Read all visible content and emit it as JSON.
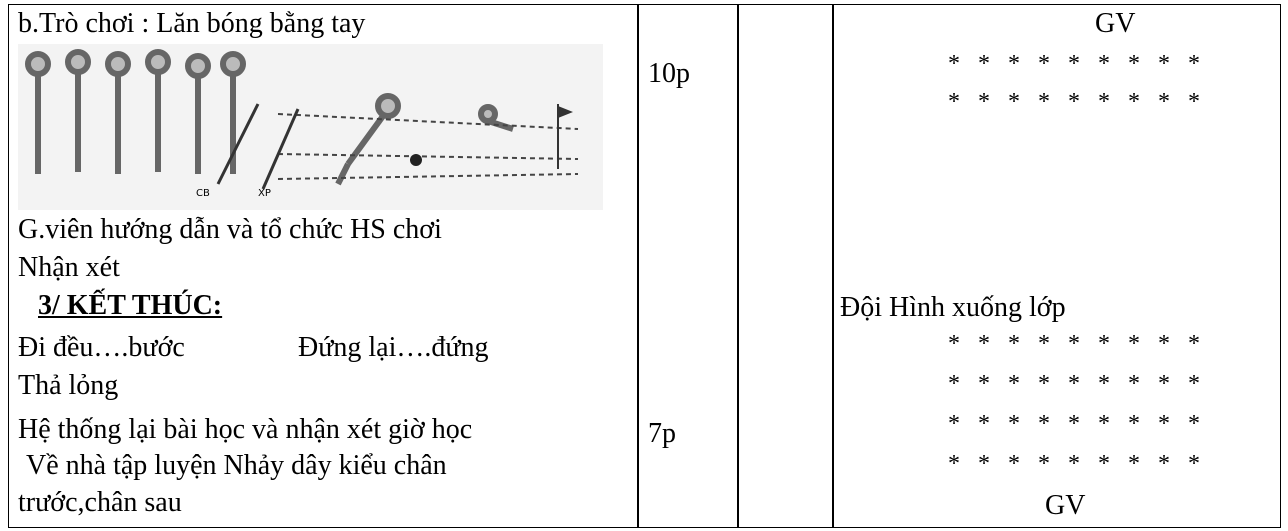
{
  "activity": {
    "title": "b.Trò chơi : Lăn bóng bằng tay",
    "image_labels": [
      "CB",
      "XP"
    ],
    "lines": [
      "G.viên hướng dẫn và tổ chức HS chơi",
      "Nhận xét"
    ]
  },
  "closing": {
    "heading": "3/ KẾT THÚC:",
    "lines": [
      "Đi đều….bước",
      "Đứng lại….đứng",
      "Thả lỏng",
      "Hệ thống lại bài học và nhận xét giờ học",
      "Về nhà tập luyện Nhảy dây kiểu chân",
      "trước,chân sau"
    ]
  },
  "times": [
    "10p",
    "7p"
  ],
  "formation": {
    "top_label": "GV",
    "top_rows": [
      "* * * * * * * * *",
      "* * * * * * * * *"
    ],
    "caption": "Đội Hình xuống lớp",
    "bottom_rows": [
      "* * * * * * * * *",
      "* * * * * * * * *",
      "* * * * * * * * *",
      "* * * * * * * * *"
    ],
    "bottom_label": "GV"
  }
}
